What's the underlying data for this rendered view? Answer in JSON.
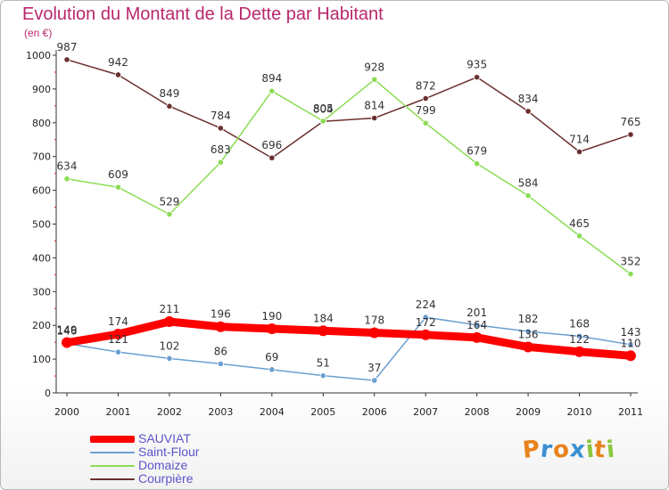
{
  "header": {
    "title": "Evolution du Montant de la Dette par Habitant",
    "subtitle": "(en €)"
  },
  "logo": {
    "letters": [
      "P",
      "r",
      "o",
      "x",
      "i",
      "t",
      "i"
    ],
    "colors": [
      "#e8821c",
      "#3a8fd1",
      "#e8821c",
      "#3a8fd1",
      "#8cc63f",
      "#e8821c",
      "#8cc63f"
    ]
  },
  "chart_data": {
    "type": "line",
    "title": "Evolution du Montant de la Dette par Habitant",
    "ylabel": "(en €)",
    "xlabel": "",
    "x": [
      "2000",
      "2001",
      "2002",
      "2003",
      "2004",
      "2005",
      "2006",
      "2007",
      "2008",
      "2009",
      "2010",
      "2011"
    ],
    "ylim": [
      0,
      1000
    ],
    "yticks": [
      "0",
      "100",
      "200",
      "300",
      "400",
      "500",
      "600",
      "700",
      "800",
      "900",
      "1000"
    ],
    "grid": false,
    "legend_position": "bottom-left",
    "series": [
      {
        "name": "SAUVIAT",
        "color": "#ff0000",
        "width": "thick",
        "values": [
          149,
          174,
          211,
          196,
          190,
          184,
          178,
          172,
          164,
          136,
          122,
          110
        ],
        "labels": [
          "149",
          "174",
          "211",
          "196",
          "190",
          "184",
          "178",
          "172",
          "164",
          "136",
          "122",
          "110"
        ]
      },
      {
        "name": "Saint-Flour",
        "color": "#6b9fd1",
        "width": "thin",
        "values": [
          146,
          121,
          102,
          86,
          69,
          51,
          37,
          224,
          201,
          182,
          168,
          143
        ],
        "labels": [
          "146",
          "121",
          "102",
          "86",
          "69",
          "51",
          "37",
          "224",
          "201",
          "182",
          "168",
          "143"
        ]
      },
      {
        "name": "Domaize",
        "color": "#8bdc55",
        "width": "thin",
        "values": [
          634,
          609,
          529,
          683,
          894,
          805,
          928,
          799,
          679,
          584,
          465,
          352
        ],
        "labels": [
          "634",
          "609",
          "529",
          "683",
          "894",
          "805",
          "928",
          "799",
          "679",
          "584",
          "465",
          "352"
        ]
      },
      {
        "name": "Courpière",
        "color": "#6b2f2f",
        "width": "thin",
        "values": [
          987,
          942,
          849,
          784,
          696,
          804,
          814,
          872,
          935,
          834,
          714,
          765
        ],
        "labels": [
          "987",
          "942",
          "849",
          "784",
          "696",
          "804",
          "814",
          "872",
          "935",
          "834",
          "714",
          "765"
        ]
      }
    ]
  }
}
